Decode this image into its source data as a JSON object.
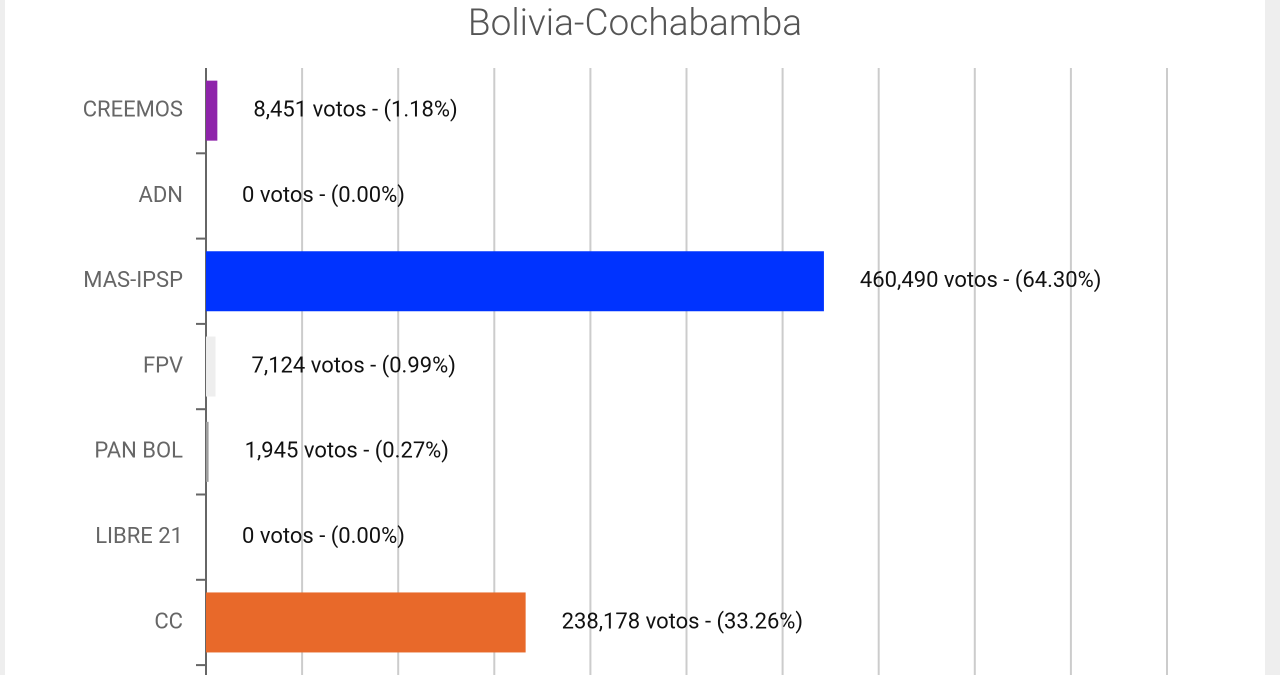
{
  "chart_data": {
    "type": "bar",
    "orientation": "horizontal",
    "title": "Bolivia-Cochabamba",
    "categories": [
      "CREEMOS",
      "ADN",
      "MAS-IPSP",
      "FPV",
      "PAN BOL",
      "LIBRE 21",
      "CC"
    ],
    "values": [
      1.18,
      0,
      64.3,
      0.99,
      0.27,
      0,
      33.26
    ],
    "value_labels": [
      "8,451 votos - (1.18%)",
      "0 votos - (0.00%)",
      "460,490 votos - (64.30%)",
      "7,124 votos - (0.99%)",
      "1,945 votos - (0.27%)",
      "0 votos - (0.00%)",
      "238,178 votos - (33.26%)"
    ],
    "colors": [
      "#8e24aa",
      "#9e9e9e",
      "#0033ff",
      "#eeeeee",
      "#9e9e9e",
      "#9e9e9e",
      "#e8692a"
    ],
    "xlim": [
      0,
      100
    ],
    "xticks": [
      0,
      10,
      20,
      30,
      40,
      50,
      60,
      70,
      80,
      90,
      100
    ],
    "grid": true
  }
}
